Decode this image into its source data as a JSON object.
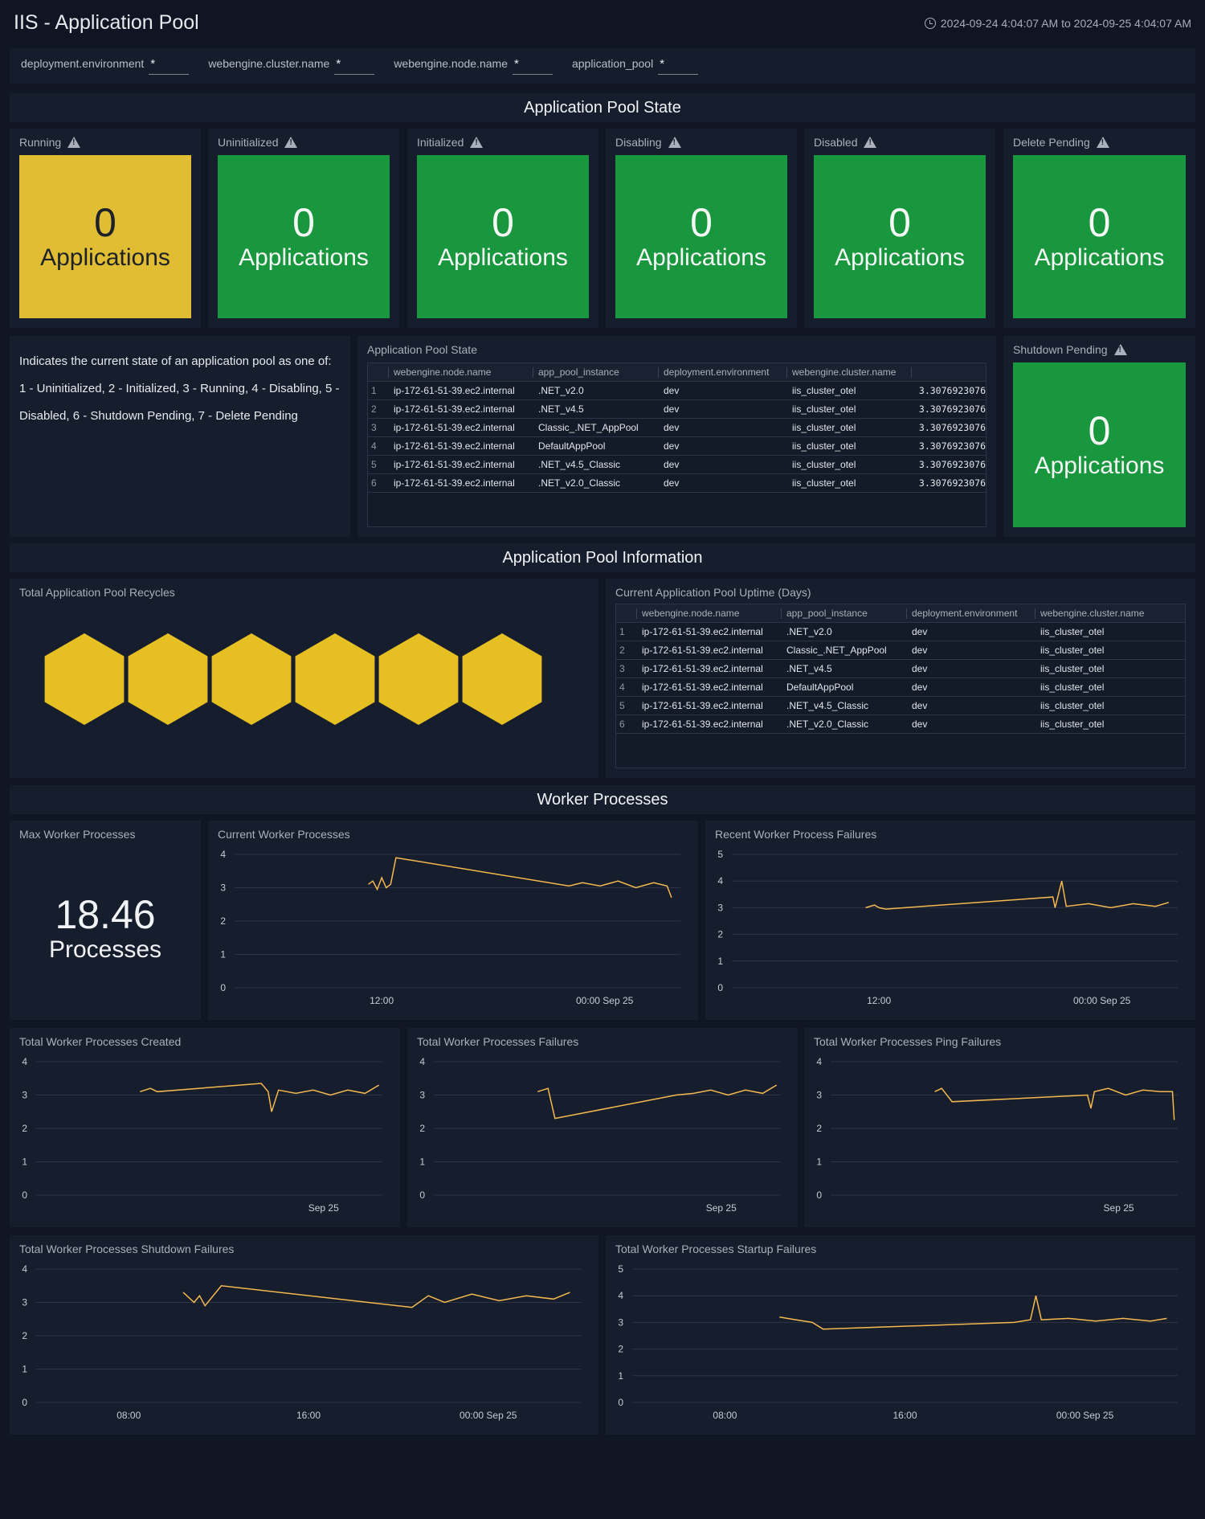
{
  "header": {
    "title": "IIS - Application Pool",
    "time_range": "2024-09-24 4:04:07 AM to 2024-09-25 4:04:07 AM"
  },
  "filters": [
    {
      "label": "deployment.environment",
      "value": "*"
    },
    {
      "label": "webengine.cluster.name",
      "value": "*"
    },
    {
      "label": "webengine.node.name",
      "value": "*"
    },
    {
      "label": "application_pool",
      "value": "*"
    }
  ],
  "sections": {
    "state": "Application Pool State",
    "info": "Application Pool Information",
    "workers": "Worker Processes"
  },
  "state_tiles": [
    {
      "title": "Running",
      "value": "0",
      "unit": "Applications",
      "color": "#e0bd32"
    },
    {
      "title": "Uninitialized",
      "value": "0",
      "unit": "Applications",
      "color": "#18973f"
    },
    {
      "title": "Initialized",
      "value": "0",
      "unit": "Applications",
      "color": "#18973f"
    },
    {
      "title": "Disabling",
      "value": "0",
      "unit": "Applications",
      "color": "#18973f"
    },
    {
      "title": "Disabled",
      "value": "0",
      "unit": "Applications",
      "color": "#18973f"
    },
    {
      "title": "Delete Pending",
      "value": "0",
      "unit": "Applications",
      "color": "#18973f"
    }
  ],
  "shutdown_tile": {
    "title": "Shutdown Pending",
    "value": "0",
    "unit": "Applications",
    "color": "#18973f"
  },
  "description": {
    "line1": "Indicates the current state of an application pool as one of:",
    "line2": "1 - Uninitialized, 2 - Initialized, 3 - Running, 4 - Disabling, 5 - Disabled, 6 - Shutdown Pending, 7 - Delete Pending"
  },
  "state_table": {
    "title": "Application Pool State",
    "columns": [
      "webengine.node.name",
      "app_pool_instance",
      "deployment.environment",
      "webengine.cluster.name",
      ""
    ],
    "rows": [
      [
        "1",
        "ip-172-61-51-39.ec2.internal",
        ".NET_v2.0",
        "dev",
        "iis_cluster_otel",
        "3.3076923076"
      ],
      [
        "2",
        "ip-172-61-51-39.ec2.internal",
        ".NET_v4.5",
        "dev",
        "iis_cluster_otel",
        "3.3076923076"
      ],
      [
        "3",
        "ip-172-61-51-39.ec2.internal",
        "Classic_.NET_AppPool",
        "dev",
        "iis_cluster_otel",
        "3.3076923076"
      ],
      [
        "4",
        "ip-172-61-51-39.ec2.internal",
        "DefaultAppPool",
        "dev",
        "iis_cluster_otel",
        "3.3076923076"
      ],
      [
        "5",
        "ip-172-61-51-39.ec2.internal",
        ".NET_v4.5_Classic",
        "dev",
        "iis_cluster_otel",
        "3.3076923076"
      ],
      [
        "6",
        "ip-172-61-51-39.ec2.internal",
        ".NET_v2.0_Classic",
        "dev",
        "iis_cluster_otel",
        "3.3076923076"
      ]
    ]
  },
  "recycles": {
    "title": "Total Application Pool Recycles",
    "count": 6,
    "color": "#e6bf22"
  },
  "uptime_table": {
    "title": "Current Application Pool Uptime (Days)",
    "columns": [
      "webengine.node.name",
      "app_pool_instance",
      "deployment.environment",
      "webengine.cluster.name"
    ],
    "rows": [
      [
        "1",
        "ip-172-61-51-39.ec2.internal",
        ".NET_v2.0",
        "dev",
        "iis_cluster_otel"
      ],
      [
        "2",
        "ip-172-61-51-39.ec2.internal",
        "Classic_.NET_AppPool",
        "dev",
        "iis_cluster_otel"
      ],
      [
        "3",
        "ip-172-61-51-39.ec2.internal",
        ".NET_v4.5",
        "dev",
        "iis_cluster_otel"
      ],
      [
        "4",
        "ip-172-61-51-39.ec2.internal",
        "DefaultAppPool",
        "dev",
        "iis_cluster_otel"
      ],
      [
        "5",
        "ip-172-61-51-39.ec2.internal",
        ".NET_v4.5_Classic",
        "dev",
        "iis_cluster_otel"
      ],
      [
        "6",
        "ip-172-61-51-39.ec2.internal",
        ".NET_v2.0_Classic",
        "dev",
        "iis_cluster_otel"
      ]
    ]
  },
  "max_workers": {
    "title": "Max Worker Processes",
    "value": "18.46",
    "unit": "Processes"
  },
  "colors": {
    "line": "#f5b94f",
    "grid": "#2c3446",
    "axis_text": "#c7ccd4"
  },
  "chart_data": [
    {
      "type": "line",
      "title": "Current Worker Processes",
      "ylim": [
        0,
        4
      ],
      "yticks": [
        "0",
        "1",
        "2",
        "3",
        "4"
      ],
      "x_range": [
        "2024-09-24 04:04",
        "2024-09-25 04:04"
      ],
      "xticks": [
        {
          "label": "12:00",
          "t": 0.33
        },
        {
          "label": "00:00 Sep 25",
          "t": 0.83
        }
      ],
      "series": [
        {
          "points": [
            [
              0.3,
              3.1
            ],
            [
              0.31,
              3.2
            ],
            [
              0.32,
              2.95
            ],
            [
              0.33,
              3.3
            ],
            [
              0.34,
              3.0
            ],
            [
              0.35,
              3.1
            ],
            [
              0.362,
              3.9
            ],
            [
              0.75,
              3.05
            ],
            [
              0.78,
              3.15
            ],
            [
              0.82,
              3.05
            ],
            [
              0.86,
              3.2
            ],
            [
              0.9,
              3.0
            ],
            [
              0.94,
              3.15
            ],
            [
              0.97,
              3.05
            ],
            [
              0.98,
              2.7
            ]
          ]
        }
      ]
    },
    {
      "type": "line",
      "title": "Recent Worker Process Failures",
      "ylim": [
        0,
        5
      ],
      "yticks": [
        "0",
        "1",
        "2",
        "3",
        "4",
        "5"
      ],
      "x_range": [
        "2024-09-24 04:04",
        "2024-09-25 04:04"
      ],
      "xticks": [
        {
          "label": "12:00",
          "t": 0.33
        },
        {
          "label": "00:00 Sep 25",
          "t": 0.83
        }
      ],
      "series": [
        {
          "points": [
            [
              0.3,
              3.0
            ],
            [
              0.32,
              3.1
            ],
            [
              0.33,
              3.0
            ],
            [
              0.345,
              2.95
            ],
            [
              0.72,
              3.4
            ],
            [
              0.725,
              3.0
            ],
            [
              0.74,
              4.0
            ],
            [
              0.75,
              3.05
            ],
            [
              0.8,
              3.15
            ],
            [
              0.85,
              3.0
            ],
            [
              0.9,
              3.15
            ],
            [
              0.95,
              3.05
            ],
            [
              0.98,
              3.2
            ]
          ]
        }
      ]
    },
    {
      "type": "line",
      "title": "Total Worker Processes Created",
      "ylim": [
        0,
        4
      ],
      "yticks": [
        "0",
        "1",
        "2",
        "3",
        "4"
      ],
      "x_range": [
        "2024-09-24 04:04",
        "2024-09-25 04:04"
      ],
      "xticks": [
        {
          "label": "Sep 25",
          "t": 0.83
        }
      ],
      "series": [
        {
          "points": [
            [
              0.3,
              3.1
            ],
            [
              0.33,
              3.2
            ],
            [
              0.35,
              3.1
            ],
            [
              0.65,
              3.35
            ],
            [
              0.67,
              3.1
            ],
            [
              0.68,
              2.5
            ],
            [
              0.7,
              3.15
            ],
            [
              0.75,
              3.05
            ],
            [
              0.8,
              3.15
            ],
            [
              0.85,
              3.0
            ],
            [
              0.9,
              3.15
            ],
            [
              0.95,
              3.05
            ],
            [
              0.99,
              3.3
            ]
          ]
        }
      ]
    },
    {
      "type": "line",
      "title": "Total Worker Processes Failures",
      "ylim": [
        0,
        4
      ],
      "yticks": [
        "0",
        "1",
        "2",
        "3",
        "4"
      ],
      "x_range": [
        "2024-09-24 04:04",
        "2024-09-25 04:04"
      ],
      "xticks": [
        {
          "label": "Sep 25",
          "t": 0.83
        }
      ],
      "series": [
        {
          "points": [
            [
              0.3,
              3.1
            ],
            [
              0.33,
              3.2
            ],
            [
              0.35,
              2.3
            ],
            [
              0.7,
              3.0
            ],
            [
              0.75,
              3.05
            ],
            [
              0.8,
              3.15
            ],
            [
              0.85,
              3.0
            ],
            [
              0.9,
              3.15
            ],
            [
              0.95,
              3.05
            ],
            [
              0.99,
              3.3
            ]
          ]
        }
      ]
    },
    {
      "type": "line",
      "title": "Total Worker Processes Ping Failures",
      "ylim": [
        0,
        4
      ],
      "yticks": [
        "0",
        "1",
        "2",
        "3",
        "4"
      ],
      "x_range": [
        "2024-09-24 04:04",
        "2024-09-25 04:04"
      ],
      "xticks": [
        {
          "label": "Sep 25",
          "t": 0.83
        }
      ],
      "series": [
        {
          "points": [
            [
              0.3,
              3.1
            ],
            [
              0.32,
              3.2
            ],
            [
              0.35,
              2.8
            ],
            [
              0.74,
              3.0
            ],
            [
              0.75,
              2.6
            ],
            [
              0.76,
              3.1
            ],
            [
              0.8,
              3.2
            ],
            [
              0.85,
              3.0
            ],
            [
              0.9,
              3.15
            ],
            [
              0.95,
              3.1
            ],
            [
              0.985,
              3.1
            ],
            [
              0.99,
              2.25
            ]
          ]
        }
      ]
    },
    {
      "type": "line",
      "title": "Total Worker Processes Shutdown Failures",
      "ylim": [
        0,
        4
      ],
      "yticks": [
        "0",
        "1",
        "2",
        "3",
        "4"
      ],
      "x_range": [
        "2024-09-24 04:04",
        "2024-09-25 04:04"
      ],
      "xticks": [
        {
          "label": "08:00",
          "t": 0.17
        },
        {
          "label": "16:00",
          "t": 0.5
        },
        {
          "label": "00:00 Sep 25",
          "t": 0.83
        }
      ],
      "series": [
        {
          "points": [
            [
              0.27,
              3.3
            ],
            [
              0.29,
              3.0
            ],
            [
              0.3,
              3.2
            ],
            [
              0.31,
              2.9
            ],
            [
              0.33,
              3.3
            ],
            [
              0.34,
              3.5
            ],
            [
              0.69,
              2.85
            ],
            [
              0.72,
              3.2
            ],
            [
              0.75,
              3.0
            ],
            [
              0.8,
              3.25
            ],
            [
              0.85,
              3.05
            ],
            [
              0.9,
              3.2
            ],
            [
              0.95,
              3.1
            ],
            [
              0.98,
              3.3
            ]
          ]
        }
      ]
    },
    {
      "type": "line",
      "title": "Total Worker Processes Startup Failures",
      "ylim": [
        0,
        5
      ],
      "yticks": [
        "0",
        "1",
        "2",
        "3",
        "4",
        "5"
      ],
      "x_range": [
        "2024-09-24 04:04",
        "2024-09-25 04:04"
      ],
      "xticks": [
        {
          "label": "08:00",
          "t": 0.17
        },
        {
          "label": "16:00",
          "t": 0.5
        },
        {
          "label": "00:00 Sep 25",
          "t": 0.83
        }
      ],
      "series": [
        {
          "points": [
            [
              0.27,
              3.2
            ],
            [
              0.3,
              3.1
            ],
            [
              0.33,
              3.0
            ],
            [
              0.35,
              2.75
            ],
            [
              0.7,
              3.0
            ],
            [
              0.73,
              3.1
            ],
            [
              0.74,
              4.0
            ],
            [
              0.75,
              3.1
            ],
            [
              0.8,
              3.15
            ],
            [
              0.85,
              3.05
            ],
            [
              0.9,
              3.15
            ],
            [
              0.95,
              3.05
            ],
            [
              0.98,
              3.15
            ]
          ]
        }
      ]
    }
  ]
}
